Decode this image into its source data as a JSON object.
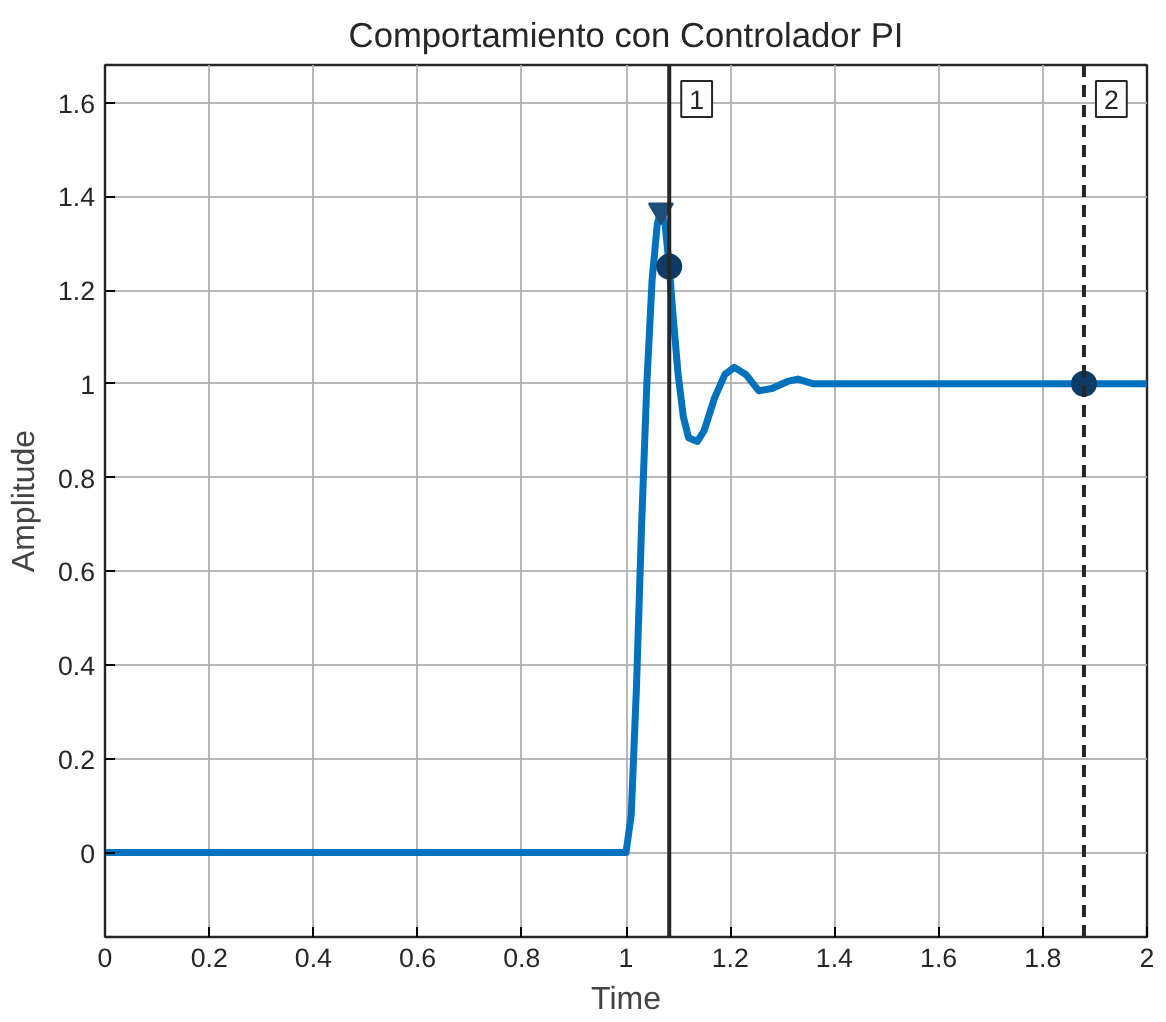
{
  "chart_data": {
    "type": "line",
    "title": "Comportamiento con Controlador PI",
    "xlabel": "Time",
    "ylabel": "Amplitude",
    "xlim": [
      0,
      2
    ],
    "ylim": [
      -0.18,
      1.68
    ],
    "xticks": [
      0,
      0.2,
      0.4,
      0.6,
      0.8,
      1,
      1.2,
      1.4,
      1.6,
      1.8,
      2
    ],
    "yticks": [
      0,
      0.2,
      0.4,
      0.6,
      0.8,
      1,
      1.2,
      1.4,
      1.6
    ],
    "grid": true,
    "line_style": "solid",
    "marker": "none",
    "series": [
      {
        "color": "#0072bd",
        "x": [
          0,
          1.0,
          1.01,
          1.02,
          1.03,
          1.04,
          1.05,
          1.06,
          1.067,
          1.075,
          1.083,
          1.09,
          1.1,
          1.11,
          1.12,
          1.137,
          1.15,
          1.17,
          1.19,
          1.208,
          1.23,
          1.255,
          1.28,
          1.31,
          1.33,
          1.36,
          1.4,
          2.0
        ],
        "values": [
          0,
          0,
          0.08,
          0.35,
          0.7,
          1.0,
          1.22,
          1.34,
          1.37,
          1.34,
          1.25,
          1.15,
          1.02,
          0.93,
          0.885,
          0.877,
          0.9,
          0.97,
          1.02,
          1.035,
          1.02,
          0.985,
          0.99,
          1.005,
          1.01,
          1.0,
          1.0,
          1.0
        ]
      },
      {
        "type": "scatter",
        "marker": "triangle",
        "color": "#1f4e79",
        "x": [
          1.067
        ],
        "values": [
          1.37
        ]
      },
      {
        "type": "scatter",
        "marker": "circle",
        "color": "#0d3b66",
        "x": [
          1.083,
          1.879
        ],
        "values": [
          1.25,
          1.0
        ]
      }
    ],
    "ref_lines": [
      {
        "axis": "x",
        "value": 1.083,
        "label": "1",
        "color": "#262626",
        "line_style": "solid"
      },
      {
        "axis": "x",
        "value": 1.879,
        "label": "2",
        "color": "#262626",
        "line_style": "dashed"
      }
    ]
  }
}
